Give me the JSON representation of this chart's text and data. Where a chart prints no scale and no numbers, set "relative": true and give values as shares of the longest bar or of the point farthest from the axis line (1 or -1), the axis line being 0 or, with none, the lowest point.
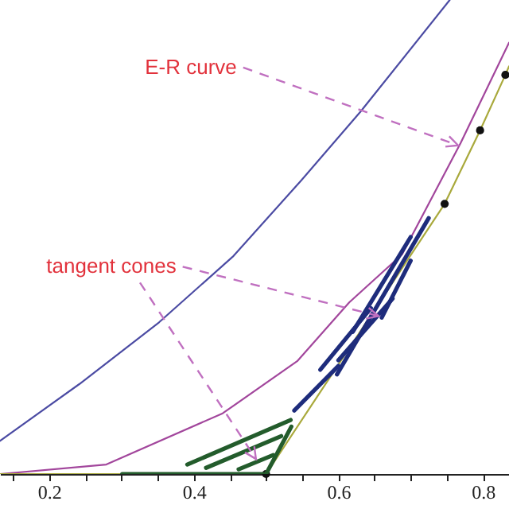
{
  "chart_data": {
    "type": "line",
    "relative": true,
    "xlim": [
      0.132,
      0.836
    ],
    "xticks": [
      {
        "value": 0.15,
        "label": null
      },
      0.2,
      {
        "value": 0.25,
        "label": null
      },
      {
        "value": 0.3,
        "label": null
      },
      {
        "value": 0.35,
        "label": null
      },
      0.4,
      {
        "value": 0.45,
        "label": null
      },
      {
        "value": 0.5,
        "label": null
      },
      {
        "value": 0.55,
        "label": null
      },
      0.6,
      {
        "value": 0.65,
        "label": null
      },
      {
        "value": 0.7,
        "label": null
      },
      {
        "value": 0.75,
        "label": null
      },
      0.8
    ],
    "grid": false,
    "annotations": [
      {
        "text": "E-R curve",
        "x": 0.77,
        "y": 0.69
      },
      {
        "text": "tangent cones",
        "x": 0.66,
        "y": 0.33
      }
    ],
    "series": [
      {
        "type": "line",
        "color": "#4b4ba3",
        "x": [
          0.132,
          0.242,
          0.352,
          0.455,
          0.549,
          0.631,
          0.754
        ],
        "values": [
          0.07,
          0.19,
          0.32,
          0.46,
          0.62,
          0.765,
          1
        ]
      },
      {
        "type": "line",
        "color": "#a2469c",
        "x": [
          0.132,
          0.279,
          0.44,
          0.543,
          0.615,
          0.688,
          0.769,
          0.836
        ],
        "values": [
          0,
          0.02,
          0.128,
          0.238,
          0.362,
          0.463,
          0.698,
          0.91
        ]
      },
      {
        "type": "line",
        "color": "#a9a93c",
        "x": [
          0.132,
          0.5,
          0.747,
          0.796,
          0.831,
          0.836
        ],
        "values": [
          0,
          0,
          0.57,
          0.725,
          0.842,
          0.86
        ]
      },
      {
        "type": "scatter",
        "color": "#111111",
        "marker": "circle",
        "x": [
          0.5,
          0.747,
          0.796,
          0.831
        ],
        "values": [
          0,
          0.57,
          0.725,
          0.842
        ]
      },
      {
        "type": "line",
        "color": "#235c2c",
        "x": [
          0.301,
          0.5
        ],
        "values": [
          0,
          0
        ]
      },
      {
        "type": "line",
        "color": "#235c2c",
        "x": [
          0.391,
          0.534
        ],
        "values": [
          0.02,
          0.114
        ]
      },
      {
        "type": "line",
        "color": "#235c2c",
        "x": [
          0.417,
          0.521
        ],
        "values": [
          0.013,
          0.08
        ]
      },
      {
        "type": "line",
        "color": "#235c2c",
        "x": [
          0.462,
          0.51
        ],
        "values": [
          0.01,
          0.04
        ]
      },
      {
        "type": "line",
        "color": "#235c2c",
        "x": [
          0.5,
          0.535
        ],
        "values": [
          0,
          0.1
        ]
      },
      {
        "type": "line",
        "color": "#1e2c7c",
        "x": [
          0.539,
          0.6
        ],
        "values": [
          0.134,
          0.228
        ]
      },
      {
        "type": "line",
        "color": "#1e2c7c",
        "x": [
          0.575,
          0.645
        ],
        "values": [
          0.22,
          0.35
        ]
      },
      {
        "type": "line",
        "color": "#1e2c7c",
        "x": [
          0.598,
          0.725
        ],
        "values": [
          0.21,
          0.54
        ]
      },
      {
        "type": "line",
        "color": "#1e2c7c",
        "x": [
          0.6,
          0.675
        ],
        "values": [
          0.24,
          0.37
        ]
      },
      {
        "type": "line",
        "color": "#1e2c7c",
        "x": [
          0.62,
          0.7
        ],
        "values": [
          0.3,
          0.5
        ]
      },
      {
        "type": "line",
        "color": "#1e2c7c",
        "x": [
          0.66,
          0.7
        ],
        "values": [
          0.33,
          0.45
        ]
      }
    ]
  }
}
